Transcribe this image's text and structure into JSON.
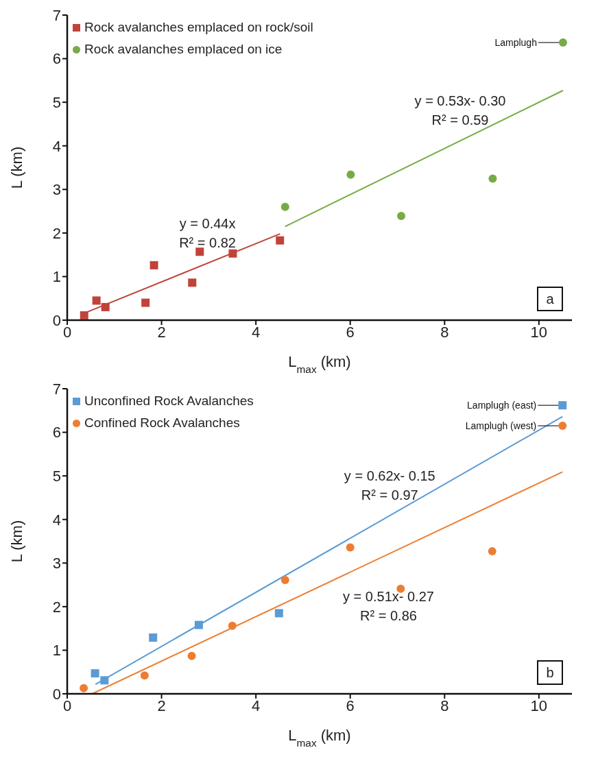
{
  "chart_data": [
    {
      "type": "scatter",
      "xlabel": "L$_{max}$ (km)",
      "ylabel": "L (km)",
      "xlim": [
        0,
        10.7
      ],
      "xticks": [
        0,
        2,
        4,
        6,
        8,
        10
      ],
      "ylim": [
        0,
        7
      ],
      "yticks": [
        0,
        1,
        2,
        3,
        4,
        5,
        6,
        7
      ],
      "legend": "top left",
      "annotations": [
        "Lamplugh",
        "y = 0.44x",
        "R² = 0.82",
        "y = 0.53x- 0.30",
        "R² = 0.59",
        "a"
      ],
      "series": [
        {
          "name": "Rock avalanches emplaced on rock/soil",
          "color": "#c0433a",
          "marker": "square",
          "x": [
            0.36,
            0.62,
            0.81,
            1.66,
            1.84,
            2.65,
            2.81,
            3.51,
            4.51
          ],
          "values": [
            0.11,
            0.45,
            0.3,
            0.4,
            1.26,
            0.86,
            1.57,
            1.53,
            1.83
          ]
        },
        {
          "name": "Rock avalanches emplaced on ice",
          "color": "#78ab46",
          "marker": "circle",
          "x": [
            4.62,
            6.01,
            7.08,
            9.02,
            10.51
          ],
          "values": [
            2.6,
            3.34,
            2.39,
            3.25,
            6.37
          ]
        },
        {
          "type": "line",
          "color": "#c0433a",
          "x": [
            0.36,
            4.51
          ],
          "values": [
            0.16,
            1.98
          ]
        },
        {
          "type": "line",
          "color": "#78ab46",
          "x": [
            4.62,
            10.51
          ],
          "values": [
            2.15,
            5.27
          ]
        }
      ]
    },
    {
      "type": "scatter",
      "xlabel": "L$_{max}$ (km)",
      "ylabel": "L (km)",
      "xlim": [
        0,
        10.7
      ],
      "xticks": [
        0,
        2,
        4,
        6,
        8,
        10
      ],
      "ylim": [
        0,
        7
      ],
      "yticks": [
        0,
        1,
        2,
        3,
        4,
        5,
        6,
        7
      ],
      "legend": "top left",
      "annotations": [
        "Lamplugh (east)",
        "Lamplugh (west)",
        "y = 0.62x- 0.15",
        "R² = 0.97",
        "y = 0.51x- 0.27",
        "R² = 0.86",
        "b"
      ],
      "series": [
        {
          "name": "Unconfined Rock Avalanches",
          "color": "#5b9bd5",
          "marker": "square",
          "x": [
            0.59,
            0.79,
            1.82,
            2.79,
            4.49,
            10.5
          ],
          "values": [
            0.47,
            0.31,
            1.29,
            1.58,
            1.85,
            6.62
          ]
        },
        {
          "name": "Confined Rock Avalanches",
          "color": "#ed7d31",
          "marker": "circle",
          "x": [
            0.35,
            1.64,
            2.64,
            3.5,
            4.62,
            6.0,
            7.07,
            9.01,
            10.5
          ],
          "values": [
            0.13,
            0.42,
            0.87,
            1.56,
            2.61,
            3.36,
            2.41,
            3.27,
            6.15
          ]
        },
        {
          "type": "line",
          "color": "#5b9bd5",
          "x": [
            0.6,
            10.5
          ],
          "values": [
            0.22,
            6.36
          ]
        },
        {
          "type": "line",
          "color": "#ed7d31",
          "x": [
            0.53,
            10.5
          ],
          "values": [
            0,
            5.09
          ]
        }
      ]
    }
  ]
}
